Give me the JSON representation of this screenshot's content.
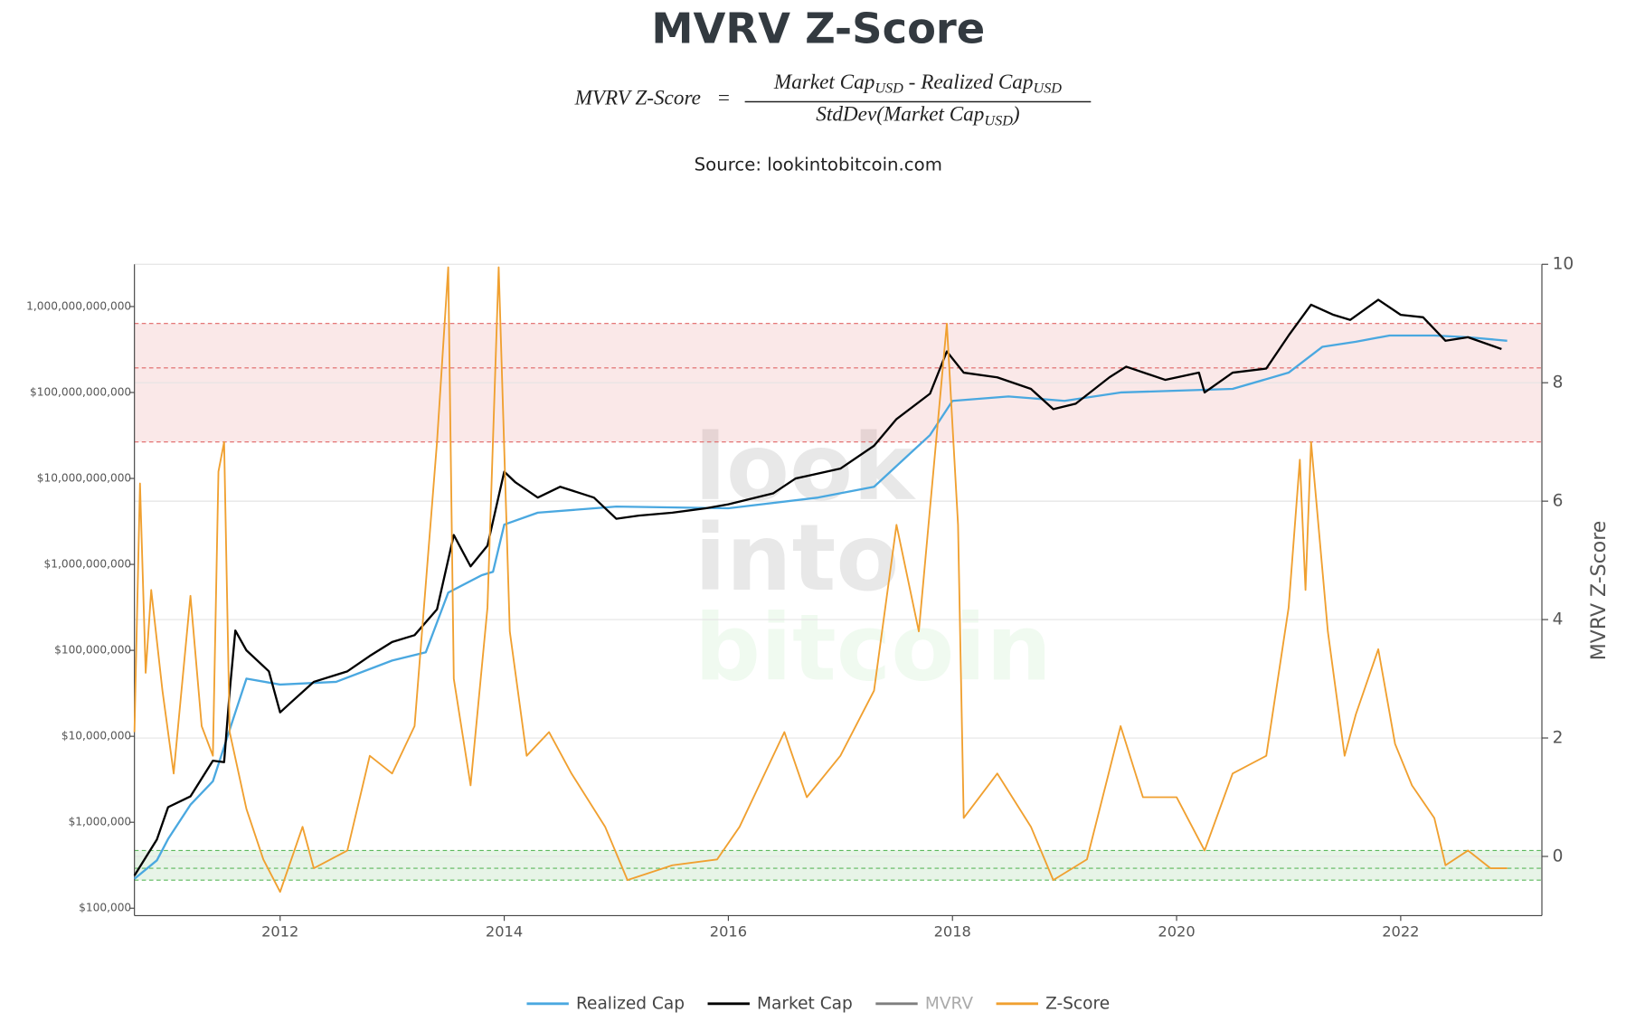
{
  "chart_data": {
    "type": "line",
    "title": "MVRV Z-Score",
    "formula": {
      "lhs": "MVRV Z-Score",
      "equals": "=",
      "numerator": [
        "Market Cap",
        "USD",
        " - Realized Cap",
        "USD"
      ],
      "denominator": [
        "StdDev(Market Cap",
        "USD",
        ")"
      ]
    },
    "subtitle": "Source: lookintobitcoin.com",
    "watermark": [
      "look",
      "into",
      "bitcoin"
    ],
    "y2_label": "MVRV Z-Score",
    "xlim": [
      2010.7,
      2023.26
    ],
    "xticks": [
      2012,
      2014,
      2016,
      2018,
      2020,
      2022
    ],
    "log_y": true,
    "ylim": [
      82000,
      3100000000000
    ],
    "yticks": [
      {
        "value": 100000,
        "label": "$100,000"
      },
      {
        "value": 1000000,
        "label": "$1,000,000"
      },
      {
        "value": 10000000,
        "label": "$10,000,000"
      },
      {
        "value": 100000000,
        "label": "$100,000,000"
      },
      {
        "value": 1000000000,
        "label": "$1,000,000,000"
      },
      {
        "value": 10000000000,
        "label": "$10,000,000,000"
      },
      {
        "value": 100000000000,
        "label": "$100,000,000,000"
      },
      {
        "value": 1000000000000,
        "label": "1,000,000,000,000"
      }
    ],
    "y2lim": [
      -1,
      10
    ],
    "y2ticks": [
      0,
      2,
      4,
      6,
      8,
      10
    ],
    "grid": true,
    "bands": [
      {
        "from": 7,
        "to": 9,
        "lines": [
          7,
          8.25,
          9
        ],
        "color": "#e06666"
      },
      {
        "from": -0.4,
        "to": 0.1,
        "lines": [
          -0.4,
          -0.2,
          0.1
        ],
        "color": "#5cb85c"
      }
    ],
    "series": [
      {
        "name": "Realized Cap",
        "color": "#4aa8e0",
        "x": [
          2010.7,
          2010.9,
          2011.0,
          2011.2,
          2011.4,
          2011.6,
          2011.7,
          2012.0,
          2012.5,
          2013.0,
          2013.3,
          2013.5,
          2013.8,
          2013.9,
          2014.0,
          2014.3,
          2015.0,
          2016.0,
          2016.8,
          2017.3,
          2017.8,
          2018.0,
          2018.5,
          2019.0,
          2019.5,
          2020.0,
          2020.5,
          2021.0,
          2021.3,
          2021.6,
          2021.9,
          2022.3,
          2022.6,
          2022.95
        ],
        "values": [
          220000,
          360000,
          640000,
          1600000,
          3000000,
          19000000,
          47000000,
          40000000,
          43000000,
          76000000,
          95000000,
          470000000,
          750000000,
          820000000,
          2900000000,
          4000000000,
          4700000000,
          4500000000,
          6000000000,
          8000000000,
          32000000000,
          80000000000,
          90000000000,
          80000000000,
          100000000000,
          105000000000,
          110000000000,
          170000000000,
          340000000000,
          390000000000,
          460000000000,
          460000000000,
          440000000000,
          400000000000
        ]
      },
      {
        "name": "Market Cap",
        "color": "#000000",
        "x": [
          2010.7,
          2010.9,
          2011.0,
          2011.2,
          2011.4,
          2011.5,
          2011.55,
          2011.6,
          2011.7,
          2011.9,
          2012.0,
          2012.1,
          2012.3,
          2012.6,
          2012.8,
          2013.0,
          2013.2,
          2013.4,
          2013.55,
          2013.7,
          2013.85,
          2014.0,
          2014.1,
          2014.3,
          2014.5,
          2014.8,
          2015.0,
          2015.2,
          2015.5,
          2015.8,
          2016.0,
          2016.4,
          2016.6,
          2017.0,
          2017.3,
          2017.5,
          2017.8,
          2017.95,
          2018.1,
          2018.4,
          2018.7,
          2018.9,
          2019.1,
          2019.4,
          2019.55,
          2019.9,
          2020.2,
          2020.25,
          2020.5,
          2020.8,
          2021.0,
          2021.2,
          2021.4,
          2021.55,
          2021.8,
          2022.0,
          2022.2,
          2022.4,
          2022.6,
          2022.9
        ],
        "values": [
          240000,
          630000,
          1500000,
          2000000,
          5200000,
          5000000,
          33000000,
          170000000,
          100000000,
          57000000,
          19000000,
          25000000,
          43000000,
          57000000,
          86000000,
          125000000,
          150000000,
          300000000,
          2200000000,
          950000000,
          1650000000,
          12000000000,
          9000000000,
          6000000000,
          8000000000,
          6000000000,
          3400000000,
          3700000000,
          4000000000,
          4500000000,
          5000000000,
          6700000000,
          10000000000,
          13000000000,
          24000000000,
          49000000000,
          97000000000,
          300000000000,
          170000000000,
          150000000000,
          110000000000,
          64000000000,
          74000000000,
          150000000000,
          200000000000,
          140000000000,
          170000000000,
          100000000000,
          170000000000,
          190000000000,
          460000000000,
          1050000000000,
          800000000000,
          700000000000,
          1200000000000,
          800000000000,
          750000000000,
          400000000000,
          440000000000,
          320000000000
        ]
      },
      {
        "name": "Z-Score",
        "color": "#f0a030",
        "axis": "y2",
        "x": [
          2010.7,
          2010.75,
          2010.8,
          2010.85,
          2010.95,
          2011.05,
          2011.1,
          2011.2,
          2011.3,
          2011.4,
          2011.45,
          2011.5,
          2011.55,
          2011.7,
          2011.85,
          2012.0,
          2012.2,
          2012.3,
          2012.6,
          2012.8,
          2013.0,
          2013.2,
          2013.4,
          2013.5,
          2013.55,
          2013.7,
          2013.85,
          2013.95,
          2014.05,
          2014.2,
          2014.4,
          2014.6,
          2014.9,
          2015.1,
          2015.5,
          2015.9,
          2016.1,
          2016.5,
          2016.7,
          2017.0,
          2017.3,
          2017.5,
          2017.7,
          2017.95,
          2018.05,
          2018.1,
          2018.4,
          2018.7,
          2018.9,
          2019.2,
          2019.5,
          2019.7,
          2020.0,
          2020.25,
          2020.5,
          2020.8,
          2021.0,
          2021.1,
          2021.15,
          2021.2,
          2021.35,
          2021.5,
          2021.6,
          2021.8,
          2021.95,
          2022.1,
          2022.3,
          2022.4,
          2022.6,
          2022.8,
          2022.95
        ],
        "values": [
          2.1,
          6.3,
          3.1,
          4.5,
          2.8,
          1.4,
          2.4,
          4.4,
          2.2,
          1.7,
          6.5,
          7.0,
          2.1,
          0.8,
          -0.05,
          -0.6,
          0.5,
          -0.2,
          0.1,
          1.7,
          1.4,
          2.2,
          7.0,
          9.95,
          3.0,
          1.2,
          4.2,
          9.95,
          3.8,
          1.7,
          2.1,
          1.4,
          0.5,
          -0.4,
          -0.15,
          -0.05,
          0.5,
          2.1,
          1.0,
          1.7,
          2.8,
          5.6,
          3.8,
          9.0,
          5.6,
          0.65,
          1.4,
          0.5,
          -0.4,
          -0.05,
          2.2,
          1.0,
          1.0,
          0.1,
          1.4,
          1.7,
          4.2,
          6.7,
          4.5,
          7.0,
          3.8,
          1.7,
          2.4,
          3.5,
          1.9,
          1.2,
          0.65,
          -0.15,
          0.1,
          -0.2,
          -0.2
        ]
      }
    ],
    "hidden_series": [
      {
        "name": "MVRV",
        "color": "#7f7f7f"
      }
    ]
  }
}
